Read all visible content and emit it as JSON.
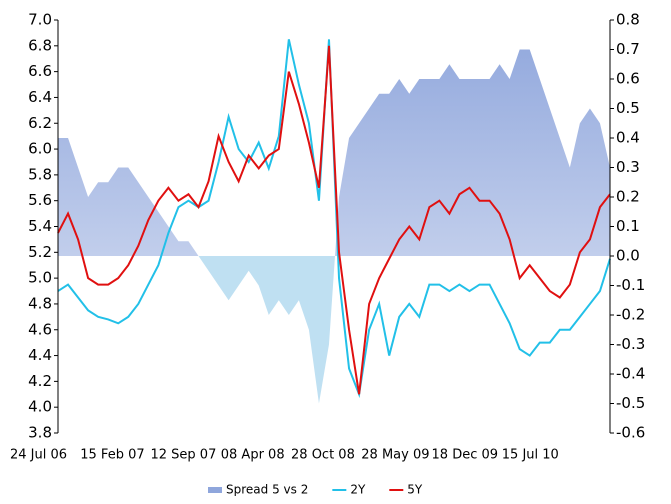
{
  "chart_data": {
    "type": "line",
    "categories": [
      "24 Jul 06",
      null,
      null,
      null,
      null,
      null,
      null,
      "15 Feb 07",
      null,
      null,
      null,
      null,
      null,
      null,
      "12 Sep 07",
      null,
      null,
      null,
      null,
      null,
      null,
      "08 Apr 08",
      null,
      null,
      null,
      null,
      null,
      null,
      "28 Oct 08",
      null,
      null,
      null,
      null,
      null,
      null,
      "28 May 09",
      null,
      null,
      null,
      null,
      null,
      null,
      "18 Dec 09",
      null,
      null,
      null,
      null,
      null,
      null,
      "15 Jul 10",
      null,
      null,
      null,
      null,
      null,
      null
    ],
    "series": [
      {
        "name": "Spread 5 vs 2",
        "type": "area",
        "axis": "y2",
        "color": "#8fa6dc",
        "color_negative": "#bfe0f2",
        "values": [
          0.4,
          0.4,
          0.3,
          0.2,
          0.25,
          0.25,
          0.3,
          0.3,
          0.25,
          0.2,
          0.15,
          0.1,
          0.05,
          0.05,
          0.0,
          -0.05,
          -0.1,
          -0.15,
          -0.1,
          -0.05,
          -0.1,
          -0.2,
          -0.15,
          -0.2,
          -0.15,
          -0.25,
          -0.5,
          -0.3,
          0.2,
          0.4,
          0.45,
          0.5,
          0.55,
          0.55,
          0.6,
          0.55,
          0.6,
          0.6,
          0.6,
          0.65,
          0.6,
          0.6,
          0.6,
          0.6,
          0.65,
          0.6,
          0.7,
          0.7,
          0.6,
          0.5,
          0.4,
          0.3,
          0.45,
          0.5,
          0.45,
          0.3
        ]
      },
      {
        "name": "2Y",
        "type": "line",
        "color": "#22c0e8",
        "values": [
          4.9,
          4.95,
          4.85,
          4.75,
          4.7,
          4.68,
          4.65,
          4.7,
          4.8,
          4.95,
          5.1,
          5.35,
          5.55,
          5.6,
          5.55,
          5.6,
          5.9,
          6.25,
          6.0,
          5.9,
          6.05,
          5.85,
          6.1,
          6.85,
          6.5,
          6.2,
          5.6,
          6.85,
          5.0,
          4.3,
          4.1,
          4.6,
          4.8,
          4.4,
          4.7,
          4.8,
          4.7,
          4.95,
          4.95,
          4.9,
          4.95,
          4.9,
          4.95,
          4.95,
          4.8,
          4.65,
          4.45,
          4.4,
          4.5,
          4.5,
          4.6,
          4.6,
          4.7,
          4.8,
          4.9,
          5.15
        ]
      },
      {
        "name": "5Y",
        "type": "line",
        "color": "#e01010",
        "values": [
          5.35,
          5.5,
          5.3,
          5.0,
          4.95,
          4.95,
          5.0,
          5.1,
          5.25,
          5.45,
          5.6,
          5.7,
          5.6,
          5.65,
          5.55,
          5.75,
          6.1,
          5.9,
          5.75,
          5.95,
          5.85,
          5.95,
          6.0,
          6.6,
          6.35,
          6.05,
          5.7,
          6.8,
          5.2,
          4.6,
          4.1,
          4.8,
          5.0,
          5.15,
          5.3,
          5.4,
          5.3,
          5.55,
          5.6,
          5.5,
          5.65,
          5.7,
          5.6,
          5.6,
          5.5,
          5.3,
          5.0,
          5.1,
          5.0,
          4.9,
          4.85,
          4.95,
          5.2,
          5.3,
          5.55,
          5.65
        ]
      }
    ],
    "ylim": [
      3.8,
      7.0
    ],
    "yticks": [
      3.8,
      {
        "value": 4,
        "label": "4.0"
      },
      4.2,
      4.4,
      4.6,
      4.8,
      {
        "value": 5,
        "label": "5.0"
      },
      5.2,
      5.4,
      5.6,
      5.8,
      {
        "value": 6,
        "label": "6.0"
      },
      6.2,
      6.4,
      6.6,
      6.8,
      {
        "value": 7,
        "label": "7.0"
      }
    ],
    "y2lim": [
      -0.6,
      0.8
    ],
    "y2ticks": [
      -0.6,
      -0.5,
      -0.4,
      -0.3,
      -0.2,
      -0.1,
      {
        "value": 0,
        "label": "0.0"
      },
      0.1,
      0.2,
      0.3,
      0.4,
      0.5,
      0.6,
      0.7,
      0.8
    ],
    "grid": false,
    "legend": "bottom"
  }
}
